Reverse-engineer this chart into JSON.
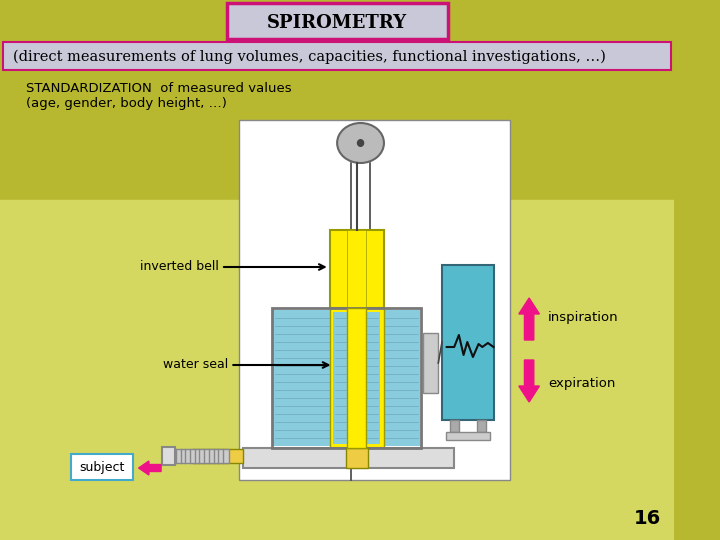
{
  "bg_color_top": "#b8b830",
  "bg_color_bottom": "#d4d860",
  "title": "SPIROMETRY",
  "title_box_facecolor": "#c8c8d8",
  "title_border_color": "#cc1177",
  "subtitle": "(direct measurements of lung volumes, capacities, functional investigations, …)",
  "subtitle_box_facecolor": "#c8c8d8",
  "subtitle_border_color": "#cc1177",
  "std_text_line1": "STANDARDIZATION  of measured values",
  "std_text_line2": "(age, gender, body height, …)",
  "label_inverted_bell": "inverted bell",
  "label_water_seal": "water seal",
  "label_subject": "subject",
  "label_inspiration": "inspiration",
  "label_expiration": "expiration",
  "page_number": "16",
  "arrow_color": "#ee1188",
  "text_color": "#000000",
  "bell_color": "#ffee00",
  "water_color": "#88ccdd",
  "chart_box_color": "#55bbcc",
  "pulley_color": "#bbbbbb",
  "subject_box_border": "#44aacc",
  "diagram_bg": "#ffffff",
  "diagram_border": "#888888",
  "tank_outline": "#777777",
  "base_color": "#dddddd",
  "tube_color": "#eecc44",
  "gauge_color": "#cccccc"
}
